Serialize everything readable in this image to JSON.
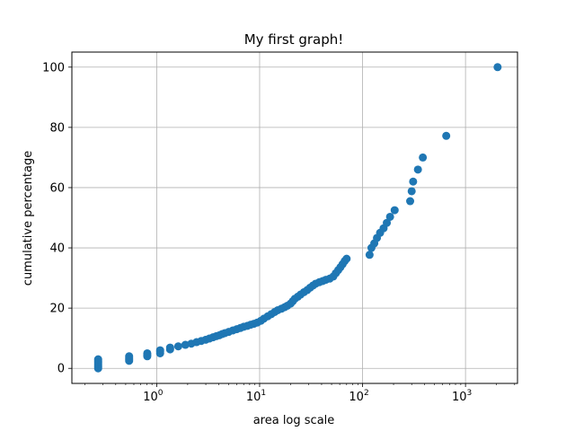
{
  "chart_data": {
    "type": "scatter",
    "title": "My first graph!",
    "xlabel": "area log scale",
    "ylabel": "cumulative percentage",
    "xscale": "log",
    "xlim": [
      0.15,
      3200
    ],
    "ylim": [
      -5,
      105
    ],
    "grid": true,
    "marker_color": "#1f77b4",
    "x_ticks": [
      {
        "value": 1,
        "base": "10",
        "exp": "0"
      },
      {
        "value": 10,
        "base": "10",
        "exp": "1"
      },
      {
        "value": 100,
        "base": "10",
        "exp": "2"
      },
      {
        "value": 1000,
        "base": "10",
        "exp": "3"
      }
    ],
    "y_ticks": [
      0,
      20,
      40,
      60,
      80,
      100
    ],
    "series": [
      {
        "points": [
          [
            0.27,
            0.0
          ],
          [
            0.27,
            0.5
          ],
          [
            0.27,
            1.0
          ],
          [
            0.27,
            1.5
          ],
          [
            0.27,
            2.0
          ],
          [
            0.27,
            2.5
          ],
          [
            0.27,
            3.0
          ],
          [
            0.54,
            2.5
          ],
          [
            0.54,
            3.0
          ],
          [
            0.54,
            3.5
          ],
          [
            0.54,
            4.0
          ],
          [
            0.81,
            4.0
          ],
          [
            0.81,
            4.5
          ],
          [
            0.81,
            5.0
          ],
          [
            1.08,
            5.0
          ],
          [
            1.08,
            5.5
          ],
          [
            1.08,
            6.0
          ],
          [
            1.35,
            6.3
          ],
          [
            1.35,
            6.9
          ],
          [
            1.62,
            7.3
          ],
          [
            1.9,
            7.8
          ],
          [
            2.17,
            8.2
          ],
          [
            2.44,
            8.7
          ],
          [
            2.71,
            9.1
          ],
          [
            3.0,
            9.5
          ],
          [
            3.25,
            9.9
          ],
          [
            3.52,
            10.3
          ],
          [
            3.8,
            10.7
          ],
          [
            4.07,
            11.0
          ],
          [
            4.34,
            11.4
          ],
          [
            4.6,
            11.7
          ],
          [
            5.0,
            12.1
          ],
          [
            5.5,
            12.6
          ],
          [
            6.0,
            13.0
          ],
          [
            6.5,
            13.4
          ],
          [
            7.0,
            13.8
          ],
          [
            7.6,
            14.1
          ],
          [
            8.2,
            14.5
          ],
          [
            8.8,
            14.8
          ],
          [
            9.5,
            15.2
          ],
          [
            10.3,
            15.8
          ],
          [
            11.0,
            16.5
          ],
          [
            12.0,
            17.3
          ],
          [
            13.0,
            18.0
          ],
          [
            14.0,
            18.7
          ],
          [
            15.0,
            19.3
          ],
          [
            16.3,
            19.8
          ],
          [
            17.5,
            20.3
          ],
          [
            18.6,
            20.8
          ],
          [
            20.0,
            21.5
          ],
          [
            21.0,
            22.3
          ],
          [
            22.0,
            23.1
          ],
          [
            23.5,
            23.8
          ],
          [
            25.0,
            24.5
          ],
          [
            27.0,
            25.3
          ],
          [
            29.0,
            26.0
          ],
          [
            31.0,
            26.8
          ],
          [
            33.0,
            27.5
          ],
          [
            35.0,
            28.1
          ],
          [
            38.0,
            28.6
          ],
          [
            41.0,
            29.0
          ],
          [
            44.0,
            29.4
          ],
          [
            48.0,
            29.8
          ],
          [
            52.0,
            30.5
          ],
          [
            55.0,
            31.6
          ],
          [
            58.0,
            32.6
          ],
          [
            61.0,
            33.6
          ],
          [
            64.0,
            34.6
          ],
          [
            67.0,
            35.6
          ],
          [
            70.0,
            36.4
          ],
          [
            117.0,
            37.7
          ],
          [
            122.0,
            40.0
          ],
          [
            130.0,
            41.5
          ],
          [
            138.0,
            43.3
          ],
          [
            148.0,
            45.0
          ],
          [
            160.0,
            46.5
          ],
          [
            172.0,
            48.3
          ],
          [
            185.0,
            50.3
          ],
          [
            205.0,
            52.5
          ],
          [
            290.0,
            55.5
          ],
          [
            300.0,
            58.8
          ],
          [
            310.0,
            62.0
          ],
          [
            345.0,
            66.0
          ],
          [
            385.0,
            70.0
          ],
          [
            650.0,
            77.2
          ],
          [
            2050.0,
            100.0
          ]
        ]
      }
    ]
  }
}
